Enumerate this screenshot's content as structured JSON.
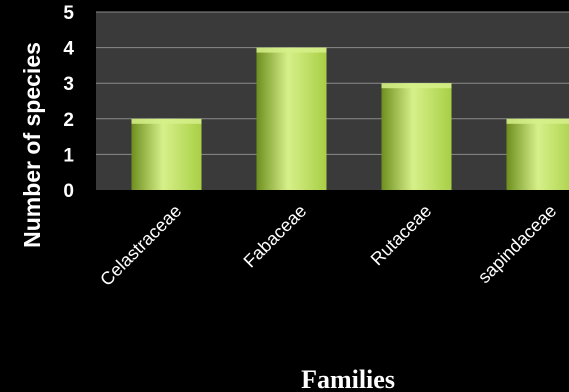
{
  "chart_data": {
    "type": "bar",
    "categories": [
      "Celastraceae",
      "Fabaceae",
      "Rutaceae",
      "sapindaceae"
    ],
    "values": [
      2,
      4,
      3,
      2
    ],
    "xlabel": "Families",
    "ylabel": "Number of species",
    "ylim": [
      0,
      5
    ],
    "yticks": [
      0,
      1,
      2,
      3,
      4,
      5
    ],
    "grid": true,
    "legend": "none",
    "colors": {
      "background": "#000000",
      "plot_area": "#3a3a3a",
      "bar_light": "#d6f08a",
      "bar_mid": "#a8cf45",
      "bar_dark": "#6e8f1f",
      "gridline": "#8a8a8a",
      "text": "#ffffff"
    }
  }
}
